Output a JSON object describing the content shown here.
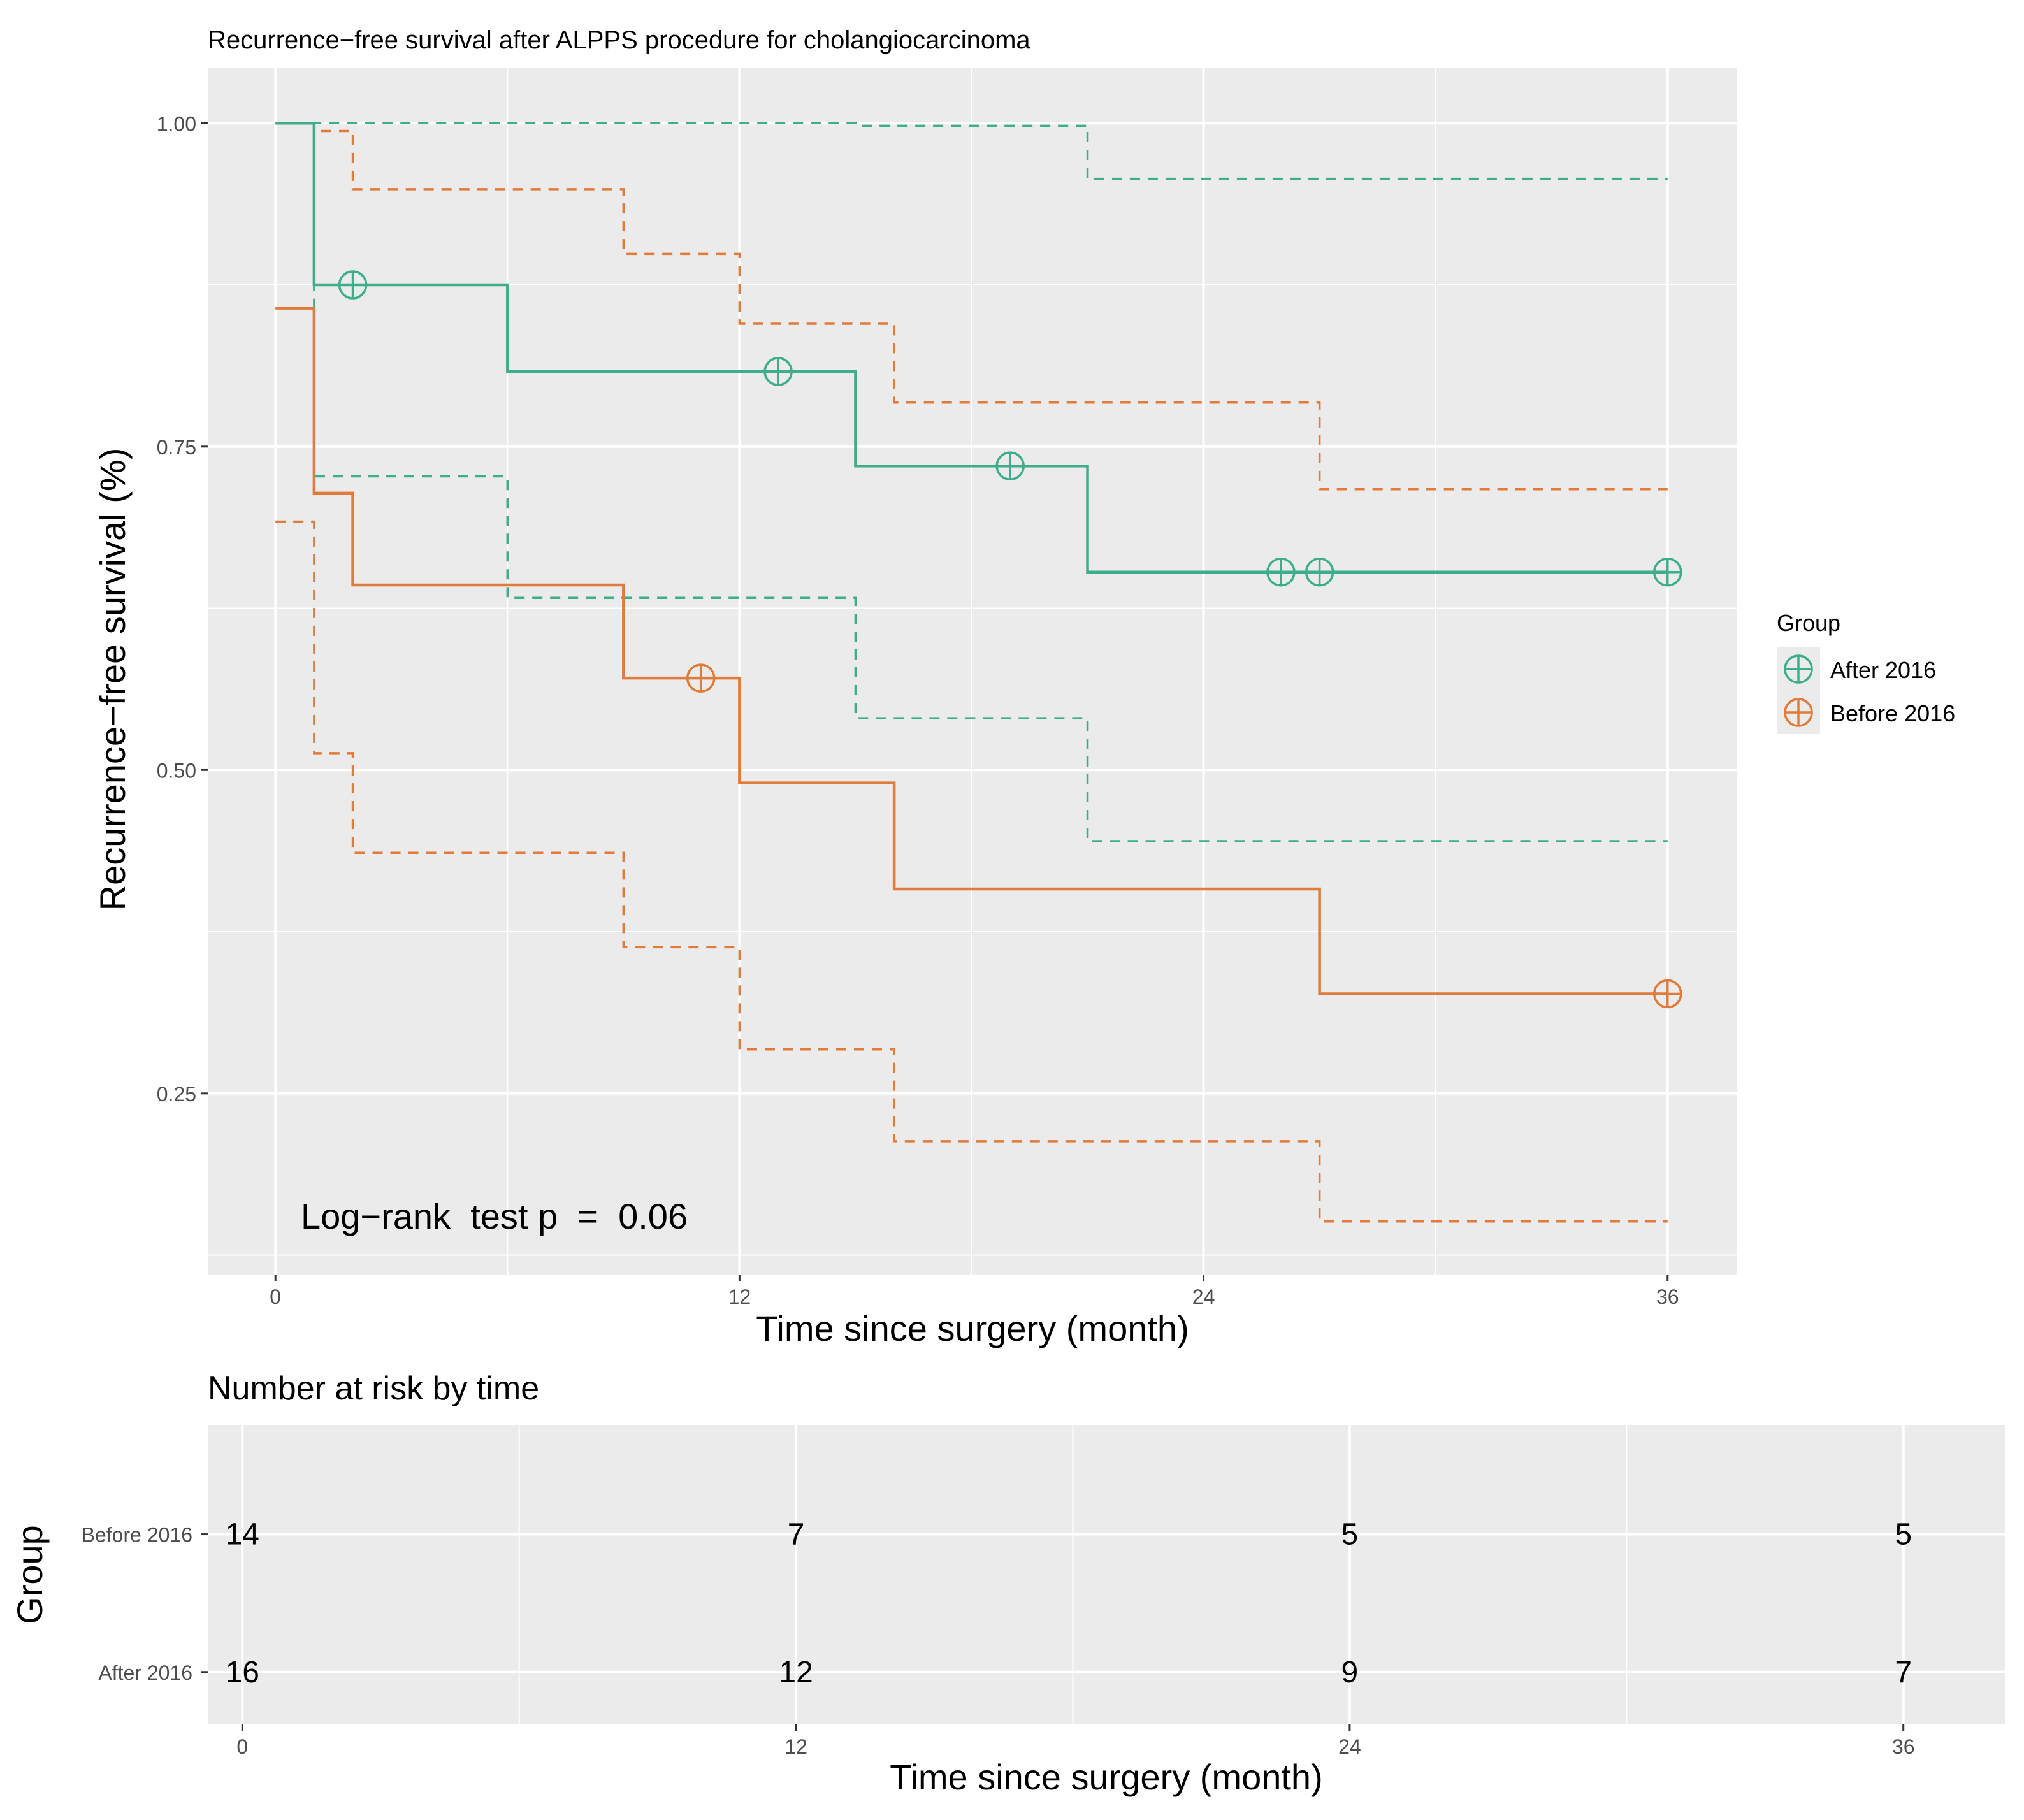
{
  "colors": {
    "after": "#3DAE8B",
    "before": "#E07B39",
    "panel": "#EBEBEB",
    "grid": "#FFFFFF",
    "text": "#000000",
    "tick_text": "#4D4D4D"
  },
  "chart_data": [
    {
      "type": "line",
      "subtype": "kaplan-meier",
      "title": "Recurrence−free survival after ALPPS procedure for cholangiocarcinoma",
      "xlabel": "Time since surgery (month)",
      "ylabel": "Recurrence−free survival (%)",
      "xlim": [
        -1.75,
        37.8
      ],
      "ylim": [
        0.11,
        1.043
      ],
      "x_ticks": [
        0,
        12,
        24,
        36
      ],
      "x_tick_labels": [
        "0",
        "12",
        "24",
        "36"
      ],
      "y_ticks": [
        0.25,
        0.5,
        0.75,
        1.0
      ],
      "y_tick_labels": [
        "0.25",
        "0.50",
        "0.75",
        "1.00"
      ],
      "annotation": "Log−rank  test p  =  0.06",
      "legend": {
        "title": "Group",
        "position": "right",
        "entries": [
          "After 2016",
          "Before 2016"
        ]
      },
      "series": [
        {
          "name": "After 2016",
          "color_key": "after",
          "x": [
            0,
            1,
            6,
            15,
            21,
            36
          ],
          "y": [
            1.0,
            0.875,
            0.808,
            0.735,
            0.653,
            0.653
          ],
          "lower_x": [
            0,
            1,
            6,
            15,
            21,
            36
          ],
          "lower_y": [
            1.0,
            0.727,
            0.633,
            0.54,
            0.445,
            0.445
          ],
          "upper_x": [
            0,
            1,
            6,
            15,
            21,
            36
          ],
          "upper_y": [
            1.0,
            1.0,
            1.0,
            0.998,
            0.957,
            0.957
          ],
          "censor_x": [
            2,
            13,
            19,
            26,
            27,
            36
          ],
          "censor_y": [
            0.875,
            0.808,
            0.735,
            0.653,
            0.653,
            0.653
          ]
        },
        {
          "name": "Before 2016",
          "color_key": "before",
          "x": [
            0,
            1,
            2,
            9,
            12,
            16,
            27,
            36
          ],
          "y": [
            0.857,
            0.714,
            0.643,
            0.571,
            0.49,
            0.408,
            0.327,
            0.327
          ],
          "lower_x": [
            0,
            1,
            2,
            9,
            12,
            16,
            27,
            36
          ],
          "lower_y": [
            0.692,
            0.513,
            0.436,
            0.363,
            0.284,
            0.213,
            0.151,
            0.151
          ],
          "upper_x": [
            0,
            1,
            2,
            9,
            12,
            16,
            27,
            36
          ],
          "upper_y": [
            1.0,
            0.994,
            0.949,
            0.899,
            0.845,
            0.784,
            0.717,
            0.717
          ],
          "censor_x": [
            11,
            36
          ],
          "censor_y": [
            0.571,
            0.327
          ]
        }
      ]
    },
    {
      "type": "table",
      "title": "Number at risk by time",
      "xlabel": "Time since surgery (month)",
      "ylabel": "Group",
      "xlim": [
        -0.75,
        38.2
      ],
      "x_ticks": [
        0,
        12,
        24,
        36
      ],
      "x_tick_labels": [
        "0",
        "12",
        "24",
        "36"
      ],
      "rows": [
        {
          "group": "Before 2016",
          "values": [
            "14",
            "7",
            "5",
            "5"
          ]
        },
        {
          "group": "After 2016",
          "values": [
            "16",
            "12",
            "9",
            "7"
          ]
        }
      ]
    }
  ]
}
